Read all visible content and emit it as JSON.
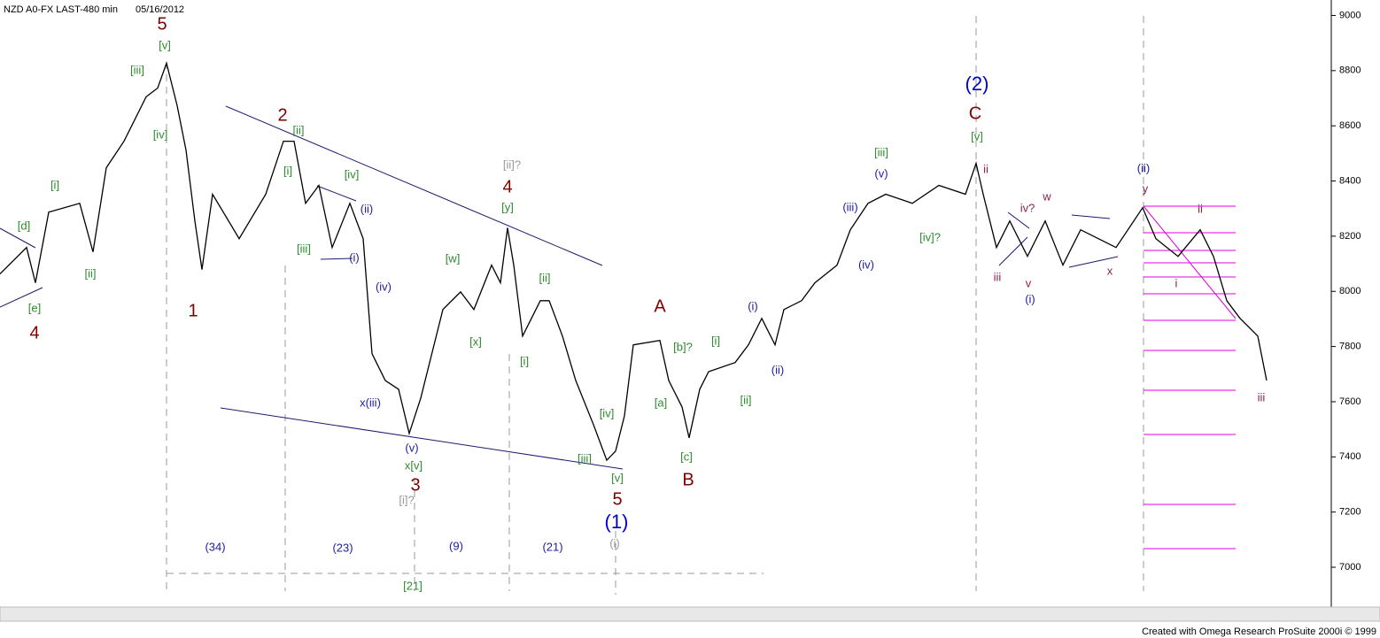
{
  "chart_data": {
    "type": "line",
    "title": "NZD A0-FX LAST-480 min",
    "date": "05/16/2012",
    "footer": "Created with Omega Research ProSuite 2000i © 1999",
    "color": "#000000",
    "values": [
      8063,
      8159,
      8031,
      8287,
      8319,
      8143,
      8448,
      8544,
      8705,
      8737,
      8827,
      8673,
      8512,
      8255,
      8079,
      8352,
      8191,
      8352,
      8544,
      8544,
      8319,
      8384,
      8159,
      8319,
      8191,
      7774,
      7677,
      7645,
      7485,
      7613,
      7934,
      7998,
      7934,
      8095,
      8031,
      8230,
      8095,
      7838,
      7966,
      7966,
      7838,
      7677,
      7517,
      7388,
      7421,
      7549,
      7806,
      7822,
      7677,
      7581,
      7469,
      7645,
      7709,
      7742,
      7806,
      7902,
      7806,
      7934,
      7966,
      8031,
      8095,
      8223,
      8319,
      8352,
      8319,
      8384,
      8352,
      8464,
      8352,
      8159,
      8255,
      8127,
      8255,
      8095,
      8223,
      8191,
      8159,
      8303,
      8191,
      8127,
      8223,
      8127,
      7966,
      7902,
      7838,
      7677
    ],
    "ylim": [
      6875,
      9040
    ],
    "yticks": [
      7000,
      7200,
      7400,
      7600,
      7800,
      8000,
      8200,
      8400,
      8600,
      8800,
      9000
    ],
    "annotations": [
      {
        "text": "5",
        "color": "#800000"
      },
      {
        "text": "[v]",
        "color": "#2e8b2e"
      },
      {
        "text": "[iii]",
        "color": "#2e8b2e"
      },
      {
        "text": "[iv]",
        "color": "#2e8b2e"
      },
      {
        "text": "[i]",
        "color": "#2e8b2e"
      },
      {
        "text": "[d]",
        "color": "#2e8b2e"
      },
      {
        "text": "[ii]",
        "color": "#2e8b2e"
      },
      {
        "text": "[e]",
        "color": "#2e8b2e"
      },
      {
        "text": "4",
        "color": "#800000"
      },
      {
        "text": "1",
        "color": "#800000"
      },
      {
        "text": "2",
        "color": "#800000"
      },
      {
        "text": "[ii]",
        "color": "#2e8b2e"
      },
      {
        "text": "[i]",
        "color": "#2e8b2e"
      },
      {
        "text": "[iv]",
        "color": "#2e8b2e"
      },
      {
        "text": "(ii)",
        "color": "#2020a0"
      },
      {
        "text": "[iii]",
        "color": "#2e8b2e"
      },
      {
        "text": "(i)",
        "color": "#2020a0"
      },
      {
        "text": "(iv)",
        "color": "#2020a0"
      },
      {
        "text": "x(iii)",
        "color": "#2020a0"
      },
      {
        "text": "(v)",
        "color": "#2020a0"
      },
      {
        "text": "x[v]",
        "color": "#2e8b2e"
      },
      {
        "text": "3",
        "color": "#800000"
      },
      {
        "text": "[i]?",
        "color": "#999999"
      },
      {
        "text": "[ii]?",
        "color": "#999999"
      },
      {
        "text": "4",
        "color": "#800000"
      },
      {
        "text": "[y]",
        "color": "#2e8b2e"
      },
      {
        "text": "[w]",
        "color": "#2e8b2e"
      },
      {
        "text": "[x]",
        "color": "#2e8b2e"
      },
      {
        "text": "[ii]",
        "color": "#2e8b2e"
      },
      {
        "text": "[i]",
        "color": "#2e8b2e"
      },
      {
        "text": "[iv]",
        "color": "#2e8b2e"
      },
      {
        "text": "[iii]",
        "color": "#2e8b2e"
      },
      {
        "text": "[v]",
        "color": "#2e8b2e"
      },
      {
        "text": "5",
        "color": "#800000"
      },
      {
        "text": "(1)",
        "color": "#0000cc"
      },
      {
        "text": "(i)",
        "color": "#999999"
      },
      {
        "text": "A",
        "color": "#800000"
      },
      {
        "text": "[b]?",
        "color": "#2e8b2e"
      },
      {
        "text": "[a]",
        "color": "#2e8b2e"
      },
      {
        "text": "[c]",
        "color": "#2e8b2e"
      },
      {
        "text": "B",
        "color": "#800000"
      },
      {
        "text": "[i]",
        "color": "#2e8b2e"
      },
      {
        "text": "[ii]",
        "color": "#2e8b2e"
      },
      {
        "text": "(i)",
        "color": "#2020a0"
      },
      {
        "text": "(ii)",
        "color": "#2020a0"
      },
      {
        "text": "(iii)",
        "color": "#2020a0"
      },
      {
        "text": "(iv)",
        "color": "#2020a0"
      },
      {
        "text": "[iii]",
        "color": "#2e8b2e"
      },
      {
        "text": "(v)",
        "color": "#2020a0"
      },
      {
        "text": "[iv]?",
        "color": "#2e8b2e"
      },
      {
        "text": "(2)",
        "color": "#0000cc"
      },
      {
        "text": "C",
        "color": "#800000"
      },
      {
        "text": "[v]",
        "color": "#2e8b2e"
      },
      {
        "text": "ii",
        "color": "#8b2252"
      },
      {
        "text": "iii",
        "color": "#8b2252"
      },
      {
        "text": "iv?",
        "color": "#8b2252"
      },
      {
        "text": "w",
        "color": "#8b2252"
      },
      {
        "text": "v",
        "color": "#8b2252"
      },
      {
        "text": "(i)",
        "color": "#2020a0"
      },
      {
        "text": "x",
        "color": "#8b2252"
      },
      {
        "text": "(ii)",
        "color": "#2020a0"
      },
      {
        "text": "y",
        "color": "#8b2252"
      },
      {
        "text": "ii",
        "color": "#8b2252"
      },
      {
        "text": "i",
        "color": "#8b2252"
      },
      {
        "text": "iii",
        "color": "#8b2252"
      },
      {
        "text": "(34)",
        "color": "#2020a0"
      },
      {
        "text": "(23)",
        "color": "#2020a0"
      },
      {
        "text": "(9)",
        "color": "#2020a0"
      },
      {
        "text": "(21)",
        "color": "#2020a0"
      },
      {
        "text": "[21]",
        "color": "#2e8b2e"
      }
    ]
  }
}
